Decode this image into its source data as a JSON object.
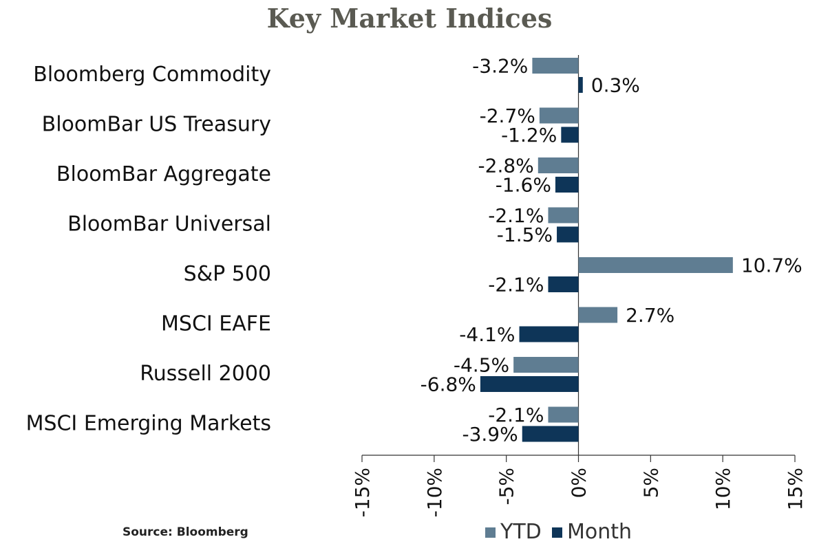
{
  "chart_data": {
    "type": "bar",
    "orientation": "horizontal",
    "title": "Key Market Indices",
    "source": "Source: Bloomberg",
    "categories": [
      "Bloomberg Commodity",
      "BloomBar US Treasury",
      "BloomBar Aggregate",
      "BloomBar Universal",
      "S&P 500",
      "MSCI EAFE",
      "Russell 2000",
      "MSCI Emerging Markets"
    ],
    "series": [
      {
        "name": "YTD",
        "color": "#5f7d92",
        "values": [
          -3.2,
          -2.7,
          -2.8,
          -2.1,
          10.7,
          2.7,
          -4.5,
          -2.1
        ],
        "labels": [
          "-3.2%",
          "-2.7%",
          "-2.8%",
          "-2.1%",
          "10.7%",
          "2.7%",
          "-4.5%",
          "-2.1%"
        ]
      },
      {
        "name": "Month",
        "color": "#0e3558",
        "values": [
          0.3,
          -1.2,
          -1.6,
          -1.5,
          -2.1,
          -4.1,
          -6.8,
          -3.9
        ],
        "labels": [
          "0.3%",
          "-1.2%",
          "-1.6%",
          "-1.5%",
          "-2.1%",
          "-4.1%",
          "-6.8%",
          "-3.9%"
        ]
      }
    ],
    "xlim": [
      -15,
      15
    ],
    "ticks": [
      -15,
      -10,
      -5,
      0,
      5,
      10,
      15
    ],
    "tick_labels": [
      "-15%",
      "-10%",
      "-5%",
      "0%",
      "5%",
      "10%",
      "15%"
    ],
    "legend": "bottom",
    "grid": false
  }
}
